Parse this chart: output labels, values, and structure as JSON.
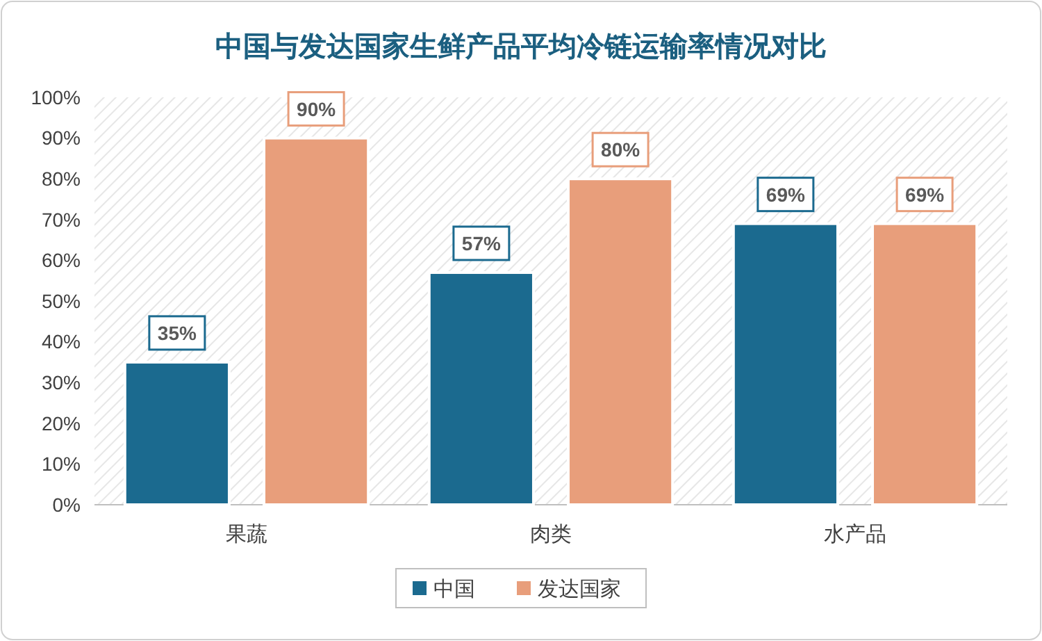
{
  "chart_data": {
    "type": "bar",
    "title": "中国与发达国家生鲜产品平均冷链运输率情况对比",
    "categories": [
      "果蔬",
      "肉类",
      "水产品"
    ],
    "series": [
      {
        "name": "中国",
        "color": "#1b6a8f",
        "values": [
          35,
          57,
          69
        ],
        "value_labels": [
          "35%",
          "57%",
          "69%"
        ]
      },
      {
        "name": "发达国家",
        "color": "#e89e7b",
        "values": [
          90,
          80,
          69
        ],
        "value_labels": [
          "90%",
          "80%",
          "69%"
        ]
      }
    ],
    "ylim": [
      0,
      100
    ],
    "yticks": [
      {
        "value": 0,
        "label": "0%"
      },
      {
        "value": 10,
        "label": "10%"
      },
      {
        "value": 20,
        "label": "20%"
      },
      {
        "value": 30,
        "label": "30%"
      },
      {
        "value": 40,
        "label": "40%"
      },
      {
        "value": 50,
        "label": "50%"
      },
      {
        "value": 60,
        "label": "60%"
      },
      {
        "value": 70,
        "label": "70%"
      },
      {
        "value": 80,
        "label": "80%"
      },
      {
        "value": 90,
        "label": "90%"
      },
      {
        "value": 100,
        "label": "100%"
      }
    ],
    "legend": "bottom"
  }
}
